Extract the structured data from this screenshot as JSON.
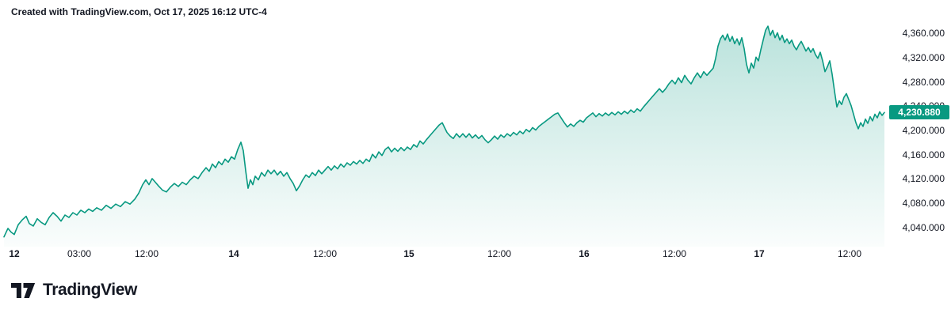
{
  "attribution": "Created with TradingView.com, Oct 17, 2025 16:12 UTC-4",
  "footer": {
    "brand": "TradingView"
  },
  "chart_data": {
    "type": "area",
    "title": "",
    "xlabel": "",
    "ylabel": "",
    "grid": false,
    "legend": null,
    "ylim": [
      4010,
      4390
    ],
    "x_range": [
      0,
      1120
    ],
    "last_price": 4230.88,
    "last_price_label": "4,230.880",
    "colors": {
      "line": "#089981",
      "fill_top": "rgba(8,153,129,0.28)",
      "fill_bottom": "rgba(8,153,129,0.02)",
      "badge_bg": "#089981",
      "badge_text": "#ffffff",
      "text": "#131722"
    },
    "y_ticks": [
      {
        "value": 4360,
        "label": "4,360.000"
      },
      {
        "value": 4320,
        "label": "4,320.000"
      },
      {
        "value": 4280,
        "label": "4,280.000"
      },
      {
        "value": 4240,
        "label": "4,240.000"
      },
      {
        "value": 4200,
        "label": "4,200.000"
      },
      {
        "value": 4160,
        "label": "4,160.000"
      },
      {
        "value": 4120,
        "label": "4,120.000"
      },
      {
        "value": 4080,
        "label": "4,080.000"
      },
      {
        "value": 4040,
        "label": "4,040.000"
      }
    ],
    "x_ticks": [
      {
        "label": "12",
        "x": 18,
        "major": true
      },
      {
        "label": "03:00",
        "x": 100,
        "major": false
      },
      {
        "label": "12:00",
        "x": 185,
        "major": false
      },
      {
        "label": "14",
        "x": 295,
        "major": true
      },
      {
        "label": "12:00",
        "x": 410,
        "major": false
      },
      {
        "label": "15",
        "x": 516,
        "major": true
      },
      {
        "label": "12:00",
        "x": 630,
        "major": false
      },
      {
        "label": "16",
        "x": 737,
        "major": true
      },
      {
        "label": "12:00",
        "x": 851,
        "major": false
      },
      {
        "label": "17",
        "x": 958,
        "major": true
      },
      {
        "label": "12:00",
        "x": 1072,
        "major": false
      }
    ],
    "points": [
      [
        5,
        4026
      ],
      [
        10,
        4040
      ],
      [
        14,
        4034
      ],
      [
        18,
        4030
      ],
      [
        23,
        4046
      ],
      [
        28,
        4054
      ],
      [
        33,
        4060
      ],
      [
        37,
        4048
      ],
      [
        42,
        4044
      ],
      [
        47,
        4056
      ],
      [
        52,
        4050
      ],
      [
        57,
        4046
      ],
      [
        62,
        4058
      ],
      [
        67,
        4066
      ],
      [
        72,
        4060
      ],
      [
        77,
        4052
      ],
      [
        82,
        4062
      ],
      [
        87,
        4058
      ],
      [
        92,
        4066
      ],
      [
        97,
        4062
      ],
      [
        102,
        4070
      ],
      [
        107,
        4066
      ],
      [
        112,
        4072
      ],
      [
        117,
        4068
      ],
      [
        122,
        4074
      ],
      [
        128,
        4070
      ],
      [
        134,
        4078
      ],
      [
        140,
        4073
      ],
      [
        146,
        4080
      ],
      [
        152,
        4076
      ],
      [
        158,
        4084
      ],
      [
        164,
        4080
      ],
      [
        170,
        4088
      ],
      [
        175,
        4098
      ],
      [
        180,
        4112
      ],
      [
        184,
        4120
      ],
      [
        188,
        4112
      ],
      [
        192,
        4122
      ],
      [
        196,
        4116
      ],
      [
        200,
        4110
      ],
      [
        205,
        4103
      ],
      [
        210,
        4100
      ],
      [
        215,
        4108
      ],
      [
        220,
        4114
      ],
      [
        225,
        4109
      ],
      [
        230,
        4116
      ],
      [
        235,
        4112
      ],
      [
        240,
        4120
      ],
      [
        245,
        4126
      ],
      [
        250,
        4122
      ],
      [
        255,
        4132
      ],
      [
        260,
        4140
      ],
      [
        264,
        4134
      ],
      [
        268,
        4146
      ],
      [
        272,
        4140
      ],
      [
        276,
        4150
      ],
      [
        280,
        4145
      ],
      [
        284,
        4154
      ],
      [
        288,
        4149
      ],
      [
        292,
        4158
      ],
      [
        296,
        4154
      ],
      [
        300,
        4170
      ],
      [
        304,
        4182
      ],
      [
        307,
        4168
      ],
      [
        310,
        4135
      ],
      [
        313,
        4106
      ],
      [
        316,
        4120
      ],
      [
        319,
        4112
      ],
      [
        322,
        4126
      ],
      [
        326,
        4120
      ],
      [
        330,
        4132
      ],
      [
        334,
        4126
      ],
      [
        338,
        4136
      ],
      [
        342,
        4130
      ],
      [
        346,
        4136
      ],
      [
        350,
        4128
      ],
      [
        354,
        4134
      ],
      [
        358,
        4126
      ],
      [
        362,
        4132
      ],
      [
        366,
        4122
      ],
      [
        370,
        4114
      ],
      [
        374,
        4102
      ],
      [
        378,
        4110
      ],
      [
        382,
        4120
      ],
      [
        386,
        4128
      ],
      [
        390,
        4124
      ],
      [
        394,
        4132
      ],
      [
        398,
        4127
      ],
      [
        402,
        4136
      ],
      [
        406,
        4130
      ],
      [
        410,
        4136
      ],
      [
        414,
        4142
      ],
      [
        418,
        4136
      ],
      [
        422,
        4143
      ],
      [
        426,
        4138
      ],
      [
        430,
        4146
      ],
      [
        434,
        4141
      ],
      [
        438,
        4148
      ],
      [
        442,
        4144
      ],
      [
        446,
        4150
      ],
      [
        450,
        4146
      ],
      [
        454,
        4152
      ],
      [
        458,
        4147
      ],
      [
        462,
        4154
      ],
      [
        466,
        4150
      ],
      [
        470,
        4162
      ],
      [
        474,
        4156
      ],
      [
        478,
        4166
      ],
      [
        482,
        4160
      ],
      [
        486,
        4170
      ],
      [
        490,
        4174
      ],
      [
        494,
        4166
      ],
      [
        498,
        4172
      ],
      [
        502,
        4167
      ],
      [
        506,
        4173
      ],
      [
        510,
        4168
      ],
      [
        514,
        4174
      ],
      [
        518,
        4170
      ],
      [
        522,
        4178
      ],
      [
        526,
        4174
      ],
      [
        530,
        4184
      ],
      [
        534,
        4179
      ],
      [
        538,
        4186
      ],
      [
        542,
        4192
      ],
      [
        546,
        4198
      ],
      [
        550,
        4204
      ],
      [
        554,
        4210
      ],
      [
        558,
        4214
      ],
      [
        561,
        4206
      ],
      [
        564,
        4198
      ],
      [
        568,
        4192
      ],
      [
        572,
        4188
      ],
      [
        576,
        4196
      ],
      [
        580,
        4190
      ],
      [
        584,
        4196
      ],
      [
        588,
        4190
      ],
      [
        592,
        4196
      ],
      [
        596,
        4189
      ],
      [
        600,
        4194
      ],
      [
        604,
        4188
      ],
      [
        608,
        4193
      ],
      [
        612,
        4186
      ],
      [
        616,
        4181
      ],
      [
        620,
        4186
      ],
      [
        624,
        4192
      ],
      [
        628,
        4187
      ],
      [
        632,
        4194
      ],
      [
        636,
        4190
      ],
      [
        640,
        4196
      ],
      [
        644,
        4192
      ],
      [
        648,
        4198
      ],
      [
        652,
        4194
      ],
      [
        656,
        4200
      ],
      [
        660,
        4196
      ],
      [
        664,
        4203
      ],
      [
        668,
        4199
      ],
      [
        672,
        4206
      ],
      [
        676,
        4202
      ],
      [
        680,
        4208
      ],
      [
        684,
        4212
      ],
      [
        688,
        4216
      ],
      [
        692,
        4220
      ],
      [
        696,
        4224
      ],
      [
        700,
        4228
      ],
      [
        704,
        4230
      ],
      [
        708,
        4222
      ],
      [
        712,
        4214
      ],
      [
        716,
        4207
      ],
      [
        720,
        4212
      ],
      [
        724,
        4208
      ],
      [
        728,
        4214
      ],
      [
        732,
        4218
      ],
      [
        736,
        4215
      ],
      [
        740,
        4222
      ],
      [
        744,
        4226
      ],
      [
        748,
        4230
      ],
      [
        752,
        4224
      ],
      [
        756,
        4229
      ],
      [
        760,
        4225
      ],
      [
        764,
        4230
      ],
      [
        768,
        4226
      ],
      [
        772,
        4231
      ],
      [
        776,
        4227
      ],
      [
        780,
        4232
      ],
      [
        784,
        4228
      ],
      [
        788,
        4233
      ],
      [
        792,
        4229
      ],
      [
        796,
        4235
      ],
      [
        800,
        4231
      ],
      [
        804,
        4237
      ],
      [
        808,
        4233
      ],
      [
        812,
        4240
      ],
      [
        816,
        4246
      ],
      [
        820,
        4252
      ],
      [
        824,
        4258
      ],
      [
        828,
        4264
      ],
      [
        832,
        4270
      ],
      [
        836,
        4264
      ],
      [
        840,
        4270
      ],
      [
        844,
        4278
      ],
      [
        848,
        4284
      ],
      [
        852,
        4278
      ],
      [
        856,
        4288
      ],
      [
        860,
        4280
      ],
      [
        864,
        4292
      ],
      [
        868,
        4284
      ],
      [
        872,
        4278
      ],
      [
        876,
        4288
      ],
      [
        880,
        4296
      ],
      [
        884,
        4288
      ],
      [
        888,
        4298
      ],
      [
        892,
        4292
      ],
      [
        896,
        4298
      ],
      [
        900,
        4304
      ],
      [
        903,
        4320
      ],
      [
        906,
        4340
      ],
      [
        909,
        4352
      ],
      [
        912,
        4358
      ],
      [
        915,
        4350
      ],
      [
        918,
        4360
      ],
      [
        921,
        4348
      ],
      [
        924,
        4356
      ],
      [
        927,
        4344
      ],
      [
        930,
        4352
      ],
      [
        933,
        4342
      ],
      [
        936,
        4354
      ],
      [
        939,
        4336
      ],
      [
        942,
        4310
      ],
      [
        945,
        4296
      ],
      [
        948,
        4312
      ],
      [
        951,
        4304
      ],
      [
        954,
        4322
      ],
      [
        957,
        4316
      ],
      [
        960,
        4334
      ],
      [
        963,
        4350
      ],
      [
        966,
        4366
      ],
      [
        969,
        4373
      ],
      [
        972,
        4358
      ],
      [
        975,
        4366
      ],
      [
        978,
        4354
      ],
      [
        981,
        4362
      ],
      [
        984,
        4350
      ],
      [
        987,
        4358
      ],
      [
        990,
        4346
      ],
      [
        993,
        4352
      ],
      [
        996,
        4344
      ],
      [
        999,
        4350
      ],
      [
        1002,
        4340
      ],
      [
        1005,
        4334
      ],
      [
        1008,
        4342
      ],
      [
        1011,
        4348
      ],
      [
        1014,
        4340
      ],
      [
        1017,
        4332
      ],
      [
        1020,
        4338
      ],
      [
        1023,
        4330
      ],
      [
        1026,
        4336
      ],
      [
        1029,
        4326
      ],
      [
        1032,
        4320
      ],
      [
        1035,
        4330
      ],
      [
        1038,
        4316
      ],
      [
        1041,
        4298
      ],
      [
        1044,
        4306
      ],
      [
        1047,
        4316
      ],
      [
        1050,
        4294
      ],
      [
        1053,
        4266
      ],
      [
        1056,
        4240
      ],
      [
        1059,
        4250
      ],
      [
        1062,
        4244
      ],
      [
        1065,
        4256
      ],
      [
        1068,
        4262
      ],
      [
        1071,
        4252
      ],
      [
        1074,
        4242
      ],
      [
        1077,
        4228
      ],
      [
        1080,
        4214
      ],
      [
        1083,
        4204
      ],
      [
        1086,
        4214
      ],
      [
        1089,
        4208
      ],
      [
        1092,
        4220
      ],
      [
        1095,
        4213
      ],
      [
        1098,
        4224
      ],
      [
        1101,
        4217
      ],
      [
        1104,
        4228
      ],
      [
        1107,
        4222
      ],
      [
        1110,
        4232
      ],
      [
        1113,
        4226
      ],
      [
        1116,
        4230.88
      ]
    ]
  }
}
